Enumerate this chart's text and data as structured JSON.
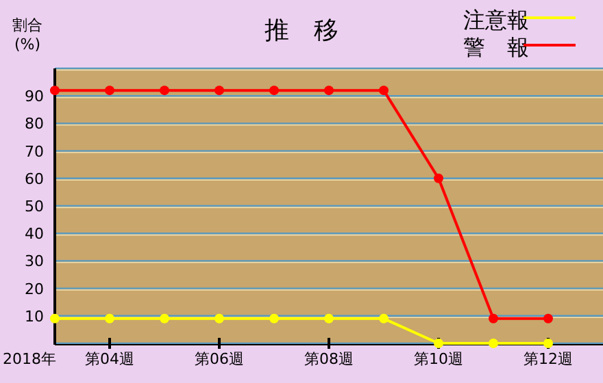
{
  "chart_data": {
    "type": "line",
    "title": "推　移",
    "ylabel": "割合\n(%)",
    "categories": [
      null,
      "第04週",
      null,
      "第06週",
      null,
      "第08週",
      null,
      "第10週",
      null,
      "第12週"
    ],
    "series": [
      {
        "name": "注意報",
        "color": "#ffff00",
        "values": [
          9,
          9,
          9,
          9,
          9,
          9,
          9,
          0,
          0,
          0
        ]
      },
      {
        "name": "警　報",
        "color": "#ff0000",
        "values": [
          92,
          92,
          92,
          92,
          92,
          92,
          92,
          60,
          9,
          9
        ]
      }
    ],
    "ylim": [
      0,
      100
    ],
    "yticks": [
      {
        "value": 0,
        "label": null
      },
      10,
      20,
      30,
      40,
      50,
      60,
      70,
      80,
      90,
      {
        "value": 100,
        "label": null
      }
    ],
    "grid": "y",
    "legend": "top right",
    "marker": "circle",
    "line_style": "solid",
    "annotations": [
      "2018年"
    ]
  }
}
